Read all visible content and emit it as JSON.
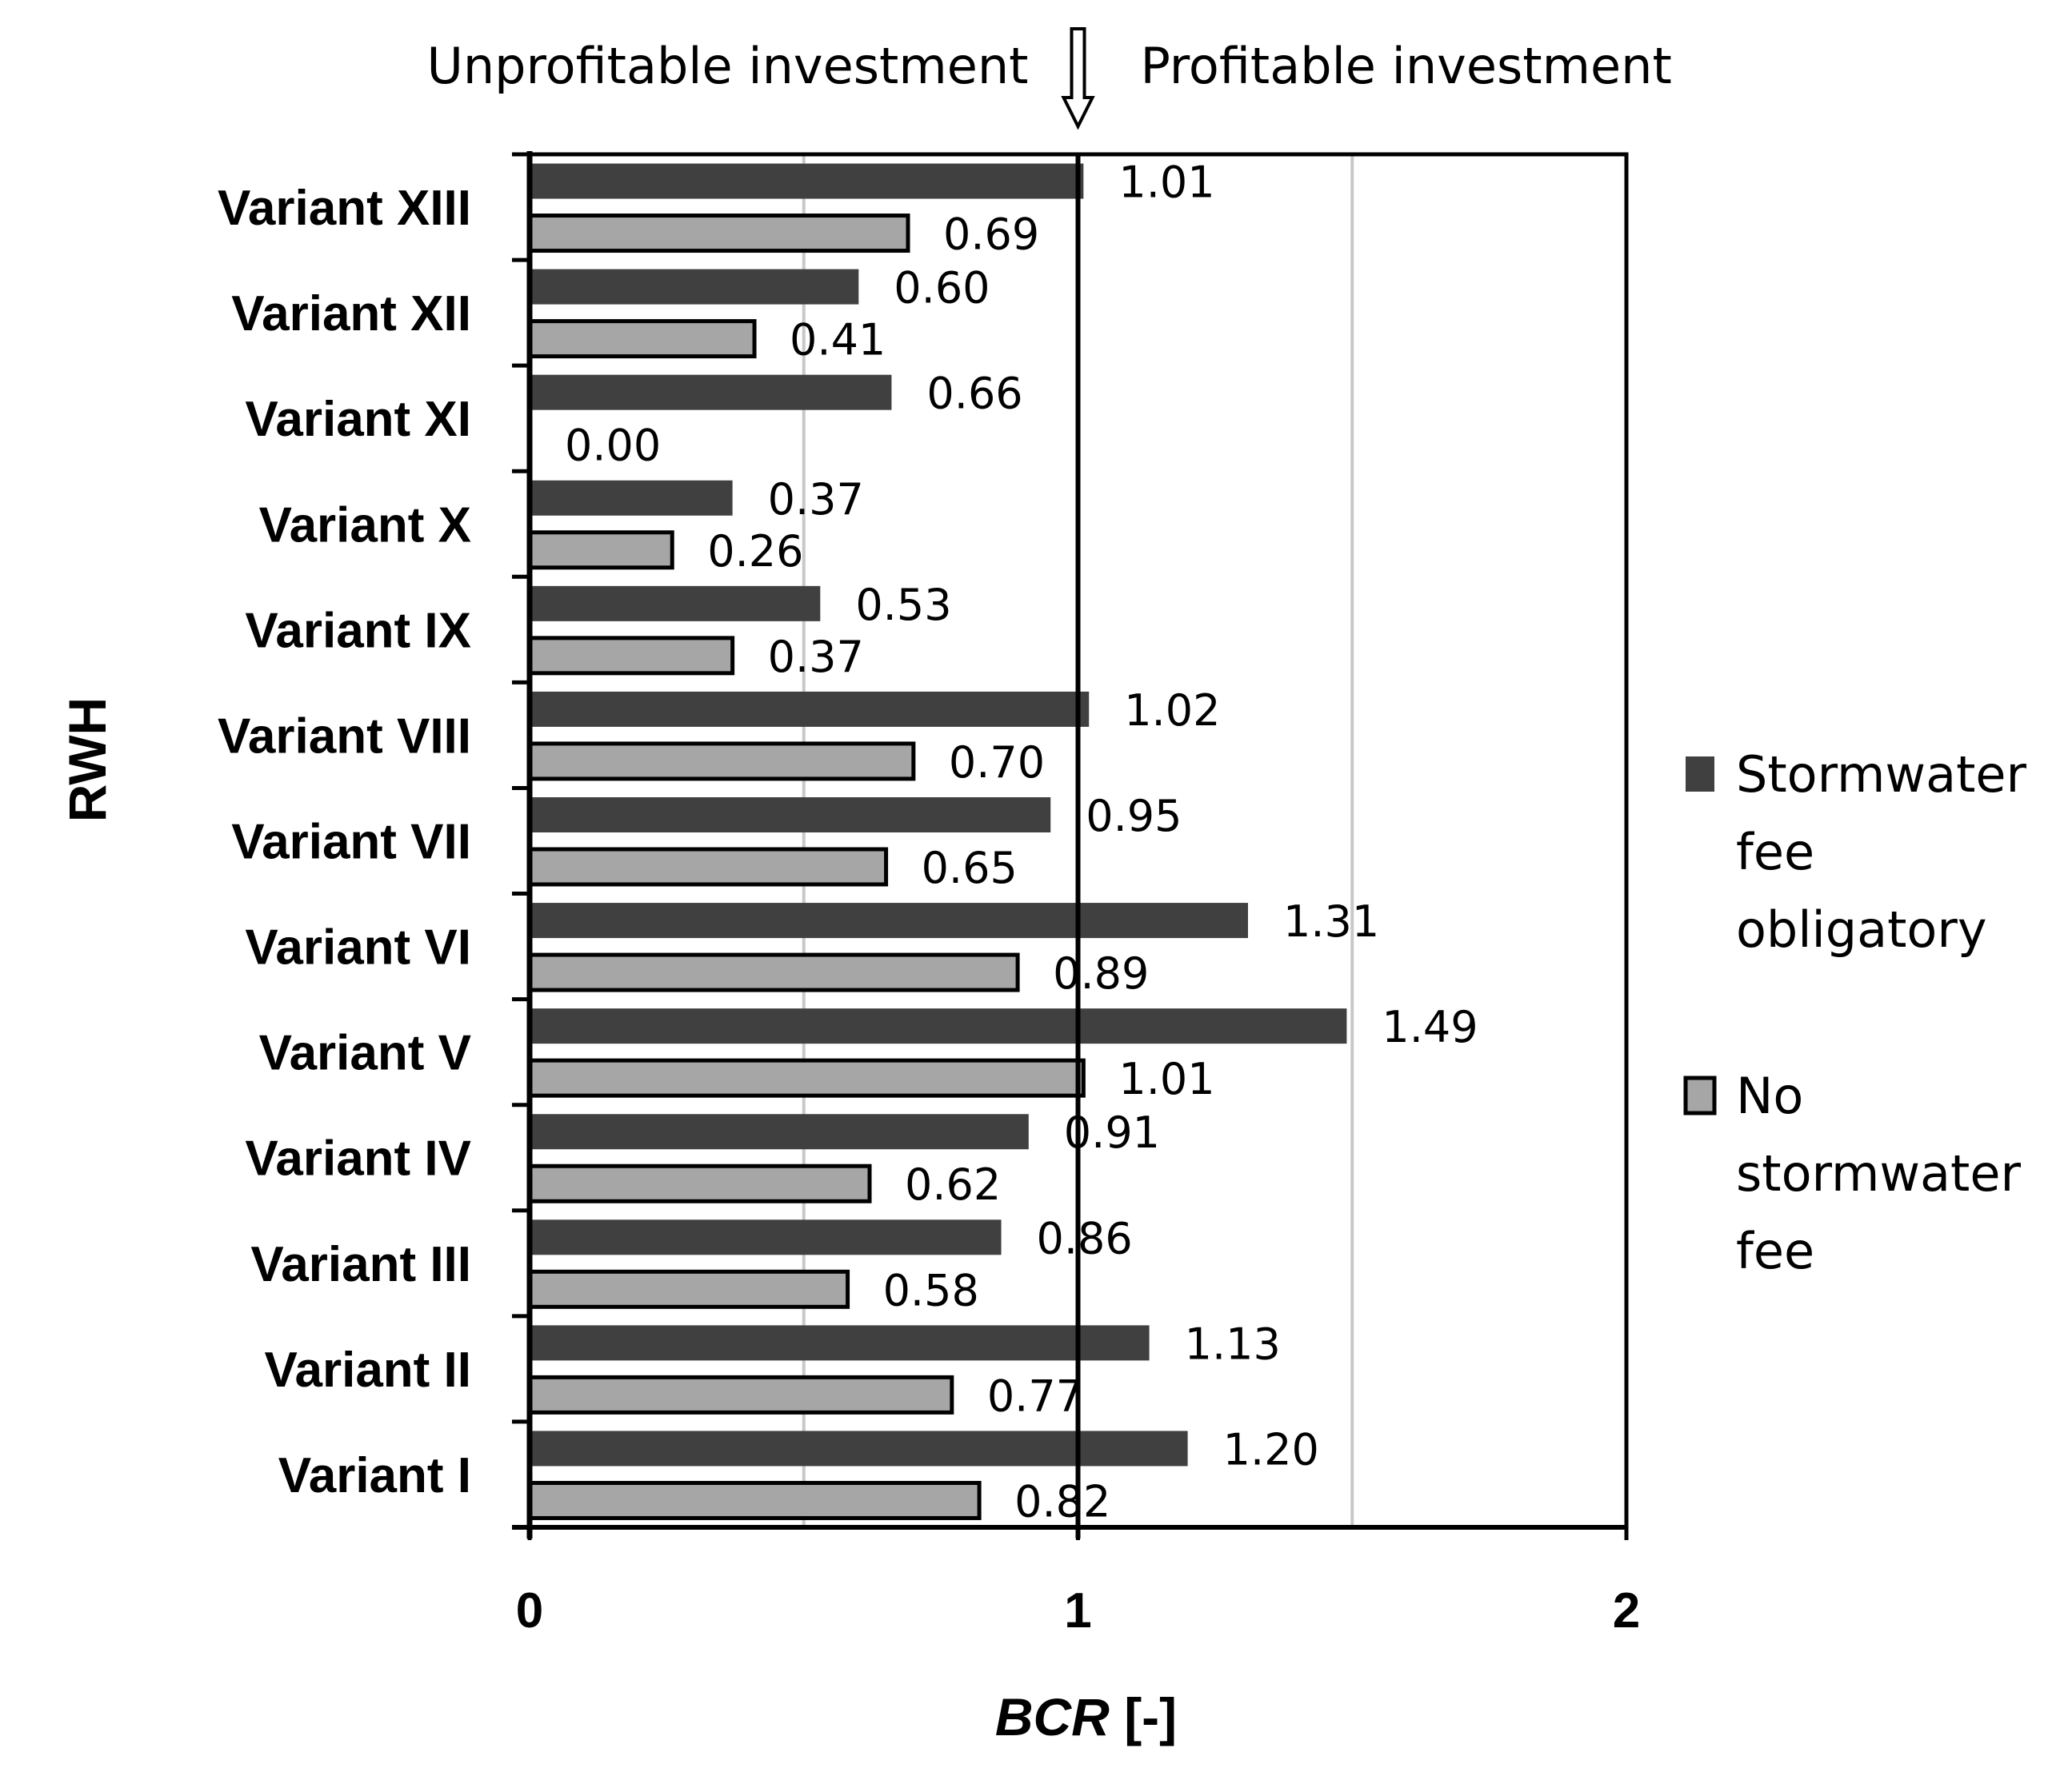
{
  "chart_data": {
    "type": "bar",
    "orientation": "horizontal",
    "title": "",
    "categories": [
      "Variant XIII",
      "Variant XII",
      "Variant XI",
      "Variant X",
      "Variant IX",
      "Variant VIII",
      "Variant VII",
      "Variant VI",
      "Variant V",
      "Variant IV",
      "Variant III",
      "Variant II",
      "Variant I"
    ],
    "series": [
      {
        "name": "Stormwater fee obligatory",
        "legend_lines": [
          "Stormwater",
          "fee",
          "obligatory"
        ],
        "color": "#404040",
        "values": [
          1.01,
          0.6,
          0.66,
          0.37,
          0.53,
          1.02,
          0.95,
          1.31,
          1.49,
          0.91,
          0.86,
          1.13,
          1.2
        ],
        "labels": [
          "1.01",
          "0.60",
          "0.66",
          "0.37",
          "0.53",
          "1.02",
          "0.95",
          "1.31",
          "1.49",
          "0.91",
          "0.86",
          "1.13",
          "1.20"
        ]
      },
      {
        "name": "No stormwater fee",
        "legend_lines": [
          "No",
          "stormwater",
          "fee"
        ],
        "color": "#a6a6a6",
        "values": [
          0.69,
          0.41,
          0.0,
          0.26,
          0.37,
          0.7,
          0.65,
          0.89,
          1.01,
          0.62,
          0.58,
          0.77,
          0.82
        ],
        "labels": [
          "0.69",
          "0.41",
          "0.00",
          "0.26",
          "0.37",
          "0.70",
          "0.65",
          "0.89",
          "1.01",
          "0.62",
          "0.58",
          "0.77",
          "0.82"
        ]
      }
    ],
    "xlabel_italic": "BCR",
    "xlabel_rest": " [-]",
    "ylabel": "RWH",
    "xlim": [
      0,
      2
    ],
    "xticks": [
      "0",
      "1",
      "2"
    ],
    "gridlines_at": [
      0.5,
      1.5
    ],
    "threshold": 1,
    "annotation_left": "Unprofitable investment",
    "annotation_right": "Profitable investment",
    "legend_position": "right"
  }
}
